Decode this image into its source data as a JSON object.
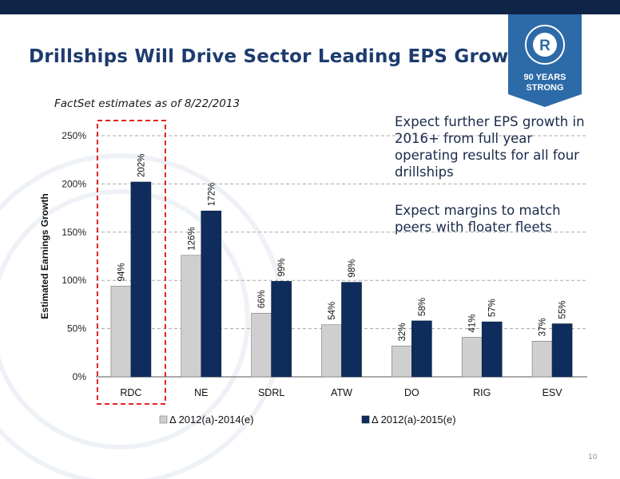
{
  "header": {
    "title": "Drillships Will Drive Sector Leading EPS Growth",
    "subtitle": "FactSet estimates as of 8/22/2013"
  },
  "badge": {
    "logo_letter": "R",
    "line1": "90 YEARS",
    "line2": "STRONG"
  },
  "callouts": [
    "Expect further EPS growth in 2016+ from full year operating results for all four drillships",
    "Expect margins to match peers with floater fleets"
  ],
  "page_number": "10",
  "colors": {
    "series1": "#cfcfcf",
    "series2": "#0e2d5c",
    "highlight": "#e02020",
    "title": "#1d3b6e",
    "top_bar": "#0e2548"
  },
  "chart_data": {
    "type": "bar",
    "ylabel": "Estimated Earnings Growth",
    "xlabel": "",
    "ylim": [
      0,
      250
    ],
    "yticks": [
      "0%",
      "50%",
      "100%",
      "150%",
      "200%",
      "250%"
    ],
    "grid": true,
    "highlighted_category": "RDC",
    "categories": [
      "RDC",
      "NE",
      "SDRL",
      "ATW",
      "DO",
      "RIG",
      "ESV"
    ],
    "series": [
      {
        "name": "Δ 2012(a)-2014(e)",
        "values": [
          94,
          126,
          66,
          54,
          32,
          41,
          37
        ],
        "labels": [
          "94%",
          "126%",
          "66%",
          "54%",
          "32%",
          "41%",
          "37%"
        ]
      },
      {
        "name": "Δ 2012(a)-2015(e)",
        "values": [
          202,
          172,
          99,
          98,
          58,
          57,
          55
        ],
        "labels": [
          "202%",
          "172%",
          "99%",
          "98%",
          "58%",
          "57%",
          "55%"
        ]
      }
    ],
    "legend_position": "bottom"
  }
}
